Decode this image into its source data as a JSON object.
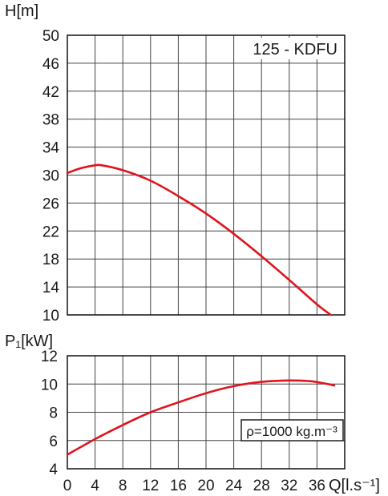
{
  "chart_data": [
    {
      "type": "line",
      "title": "125 - KDFU",
      "xlabel": "",
      "ylabel": "H[m]",
      "xlim": [
        0,
        40
      ],
      "ylim": [
        10,
        50
      ],
      "y_ticks": [
        "10",
        "14",
        "18",
        "22",
        "26",
        "30",
        "34",
        "38",
        "42",
        "46",
        "50"
      ],
      "grid": true,
      "series": [
        {
          "color": "#e0141e",
          "x": [
            0,
            2,
            4,
            5,
            8,
            12,
            16,
            20,
            24,
            28,
            32,
            36,
            38
          ],
          "y": [
            30.3,
            31.0,
            31.4,
            31.4,
            30.7,
            29.2,
            27.0,
            24.5,
            21.6,
            18.4,
            15.0,
            11.5,
            10.0
          ]
        }
      ]
    },
    {
      "type": "line",
      "title": "",
      "xlabel": "Q[l.s⁻¹]",
      "ylabel": "P₁[kW]",
      "xlim": [
        0,
        40
      ],
      "ylim": [
        4,
        12
      ],
      "x_ticks": [
        "0",
        "4",
        "8",
        "12",
        "16",
        "20",
        "24",
        "28",
        "32",
        "36"
      ],
      "y_ticks": [
        "4",
        "6",
        "8",
        "10",
        "12"
      ],
      "grid": true,
      "annotation": "ρ=1000 kg.m⁻³",
      "series": [
        {
          "color": "#e0141e",
          "x": [
            0,
            4,
            8,
            12,
            16,
            20,
            24,
            28,
            32,
            35,
            37,
            38.5
          ],
          "y": [
            5.0,
            6.1,
            7.1,
            8.0,
            8.7,
            9.35,
            9.85,
            10.15,
            10.25,
            10.2,
            10.05,
            9.9
          ]
        }
      ]
    }
  ]
}
